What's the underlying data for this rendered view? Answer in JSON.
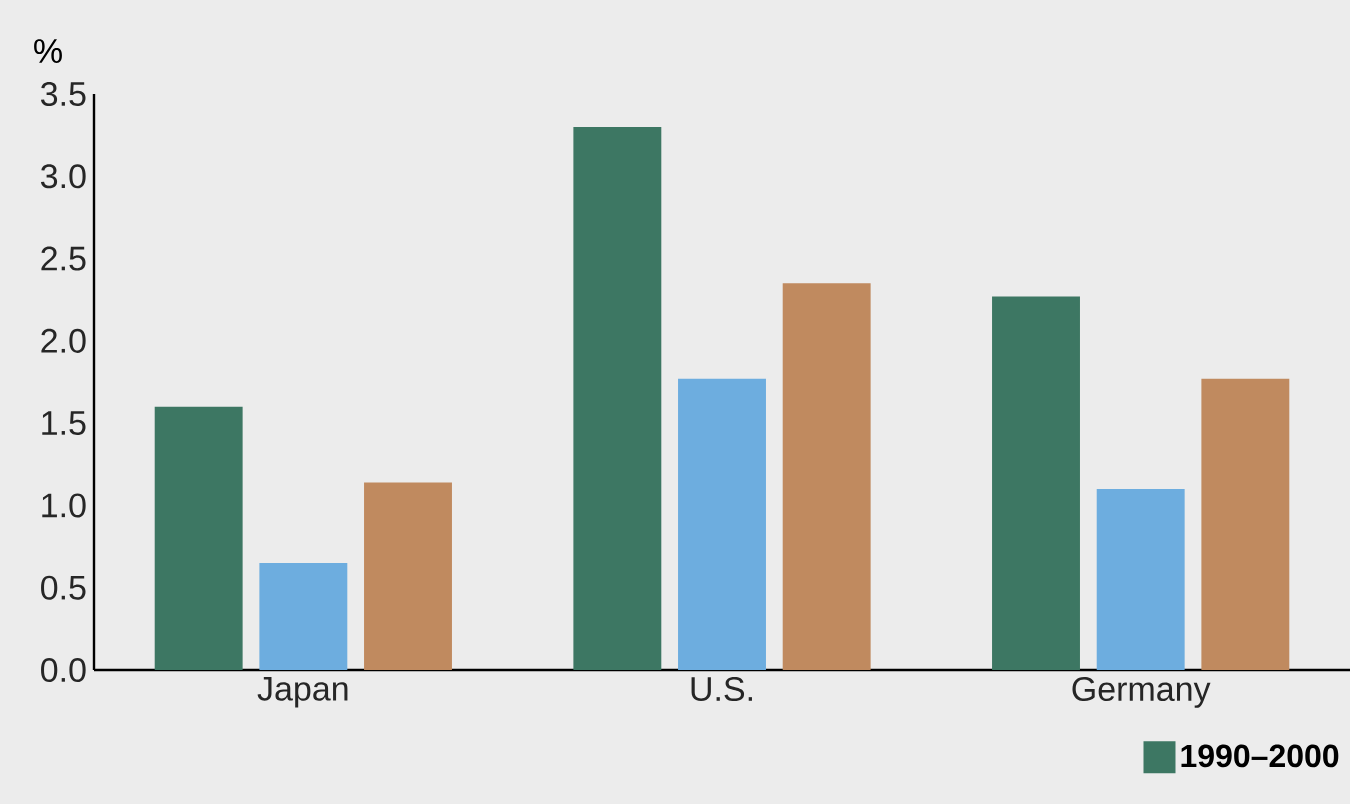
{
  "chart_data": {
    "type": "bar",
    "ylabel": "%",
    "categories": [
      "Japan",
      "U.S.",
      "Germany"
    ],
    "series": [
      {
        "name": "1990–2000",
        "color": "#3d7763",
        "values": [
          1.6,
          3.3,
          2.27
        ]
      },
      {
        "color": "#6daddf",
        "values": [
          0.65,
          1.77,
          1.1
        ]
      },
      {
        "color": "#c08a5f",
        "values": [
          1.14,
          2.35,
          1.77
        ]
      }
    ],
    "ylim": [
      0,
      3.5
    ],
    "yticks": [
      {
        "value": 0,
        "label": "0.0"
      },
      {
        "value": 0.5,
        "label": "0.5"
      },
      {
        "value": 1,
        "label": "1.0"
      },
      {
        "value": 1.5,
        "label": "1.5"
      },
      {
        "value": 2,
        "label": "2.0"
      },
      {
        "value": 2.5,
        "label": "2.5"
      },
      {
        "value": 3,
        "label": "3.0"
      },
      {
        "value": 3.5,
        "label": "3.5"
      }
    ],
    "grid": false,
    "legend": "bottom right"
  }
}
